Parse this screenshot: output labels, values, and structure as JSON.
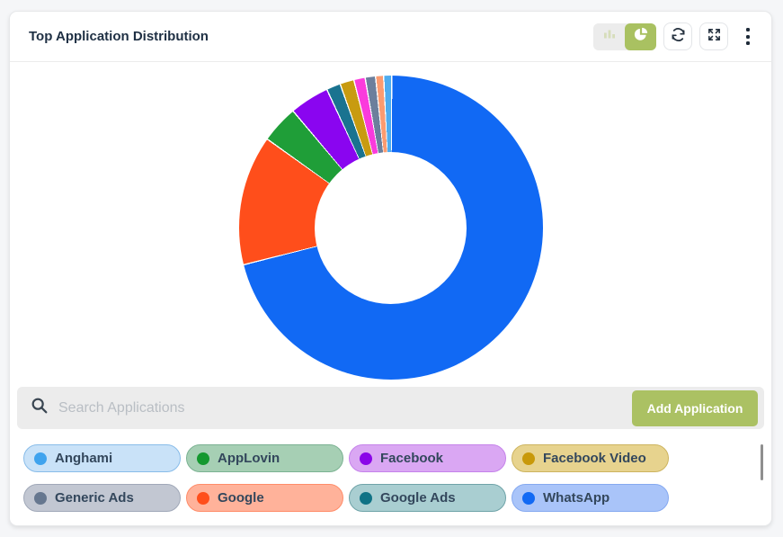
{
  "colors": {
    "accent_olive": "#A9C161",
    "page_background": "#F5F6F8",
    "card_background": "#FFFFFF",
    "search_background": "#ECECEC",
    "pill_text": "#33475C",
    "icon_dark": "#25313F"
  },
  "header": {
    "title": "Top Application Distribution"
  },
  "toolbar": {
    "view_toggle": {
      "options": [
        "bar",
        "pie"
      ],
      "active": "pie"
    },
    "icons": [
      "bar-chart-icon",
      "pie-chart-icon",
      "refresh-icon",
      "expand-icon",
      "kebab-menu-icon"
    ]
  },
  "search": {
    "icon": "search-icon",
    "placeholder": "Search Applications",
    "button_label": "Add Application"
  },
  "applications": [
    {
      "name": "Anghami",
      "dot": "#3FA3EE",
      "bg": "#C9E2F8",
      "border": "#88BCE9"
    },
    {
      "name": "AppLovin",
      "dot": "#14982F",
      "bg": "#A6CFB4",
      "border": "#7BB292"
    },
    {
      "name": "Facebook",
      "dot": "#8A05E8",
      "bg": "#DAA7F3",
      "border": "#C583EA"
    },
    {
      "name": "Facebook Video",
      "dot": "#C8990A",
      "bg": "#E7D38E",
      "border": "#CDB45F"
    },
    {
      "name": "Generic Ads",
      "dot": "#66778F",
      "bg": "#C2C7D2",
      "border": "#A0A8B8"
    },
    {
      "name": "Google",
      "dot": "#FF4E1B",
      "bg": "#FFB29A",
      "border": "#FF8C69"
    },
    {
      "name": "Google Ads",
      "dot": "#0F7285",
      "bg": "#A9CED1",
      "border": "#6FA3A8"
    },
    {
      "name": "WhatsApp",
      "dot": "#1169F4",
      "bg": "#A9C4F9",
      "border": "#85A9F0"
    }
  ],
  "chart_data": {
    "type": "pie",
    "donut": true,
    "title": "Top Application Distribution",
    "legend_position": "pills-below-chart",
    "start_angle_deg": 0,
    "direction": "clockwise",
    "units": "percent (estimated from arc angles)",
    "segments": [
      {
        "label": "WhatsApp",
        "color": "#1169F4",
        "value": 71.0
      },
      {
        "label": "Google",
        "color": "#FF4E1B",
        "value": 13.8
      },
      {
        "label": "AppLovin",
        "color": "#1F9E38",
        "value": 4.0
      },
      {
        "label": "Facebook",
        "color": "#8A05F0",
        "value": 4.2
      },
      {
        "label": "Google Ads",
        "color": "#1A7390",
        "value": 1.5
      },
      {
        "label": "Facebook Video",
        "color": "#C89B10",
        "value": 1.5
      },
      {
        "label": "",
        "color": "#FA3BDC",
        "value": 1.2
      },
      {
        "label": "Generic Ads",
        "color": "#6C7F9C",
        "value": 1.1
      },
      {
        "label": "",
        "color": "#FB9B70",
        "value": 0.85
      },
      {
        "label": "Anghami",
        "color": "#4EACEF",
        "value": 0.85
      }
    ]
  }
}
